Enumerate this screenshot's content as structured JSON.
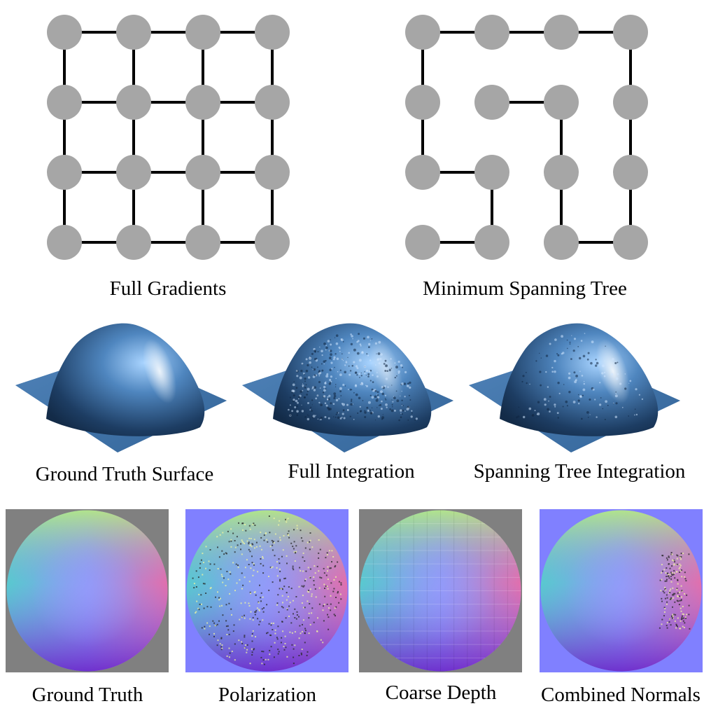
{
  "graphs": {
    "full_gradients": {
      "caption": "Full Gradients",
      "grid": {
        "rows": 4,
        "cols": 4
      },
      "edges": "all-neighbors",
      "node_color": "#a6a6a6",
      "edge_color": "#000000"
    },
    "minimum_spanning_tree": {
      "caption": "Minimum Spanning Tree",
      "grid": {
        "rows": 4,
        "cols": 4
      },
      "edges": [
        [
          [
            0,
            0
          ],
          [
            0,
            1
          ]
        ],
        [
          [
            0,
            1
          ],
          [
            0,
            2
          ]
        ],
        [
          [
            0,
            2
          ],
          [
            0,
            3
          ]
        ],
        [
          [
            0,
            0
          ],
          [
            1,
            0
          ]
        ],
        [
          [
            1,
            0
          ],
          [
            2,
            0
          ]
        ],
        [
          [
            2,
            0
          ],
          [
            2,
            1
          ]
        ],
        [
          [
            2,
            1
          ],
          [
            3,
            1
          ]
        ],
        [
          [
            3,
            0
          ],
          [
            3,
            1
          ]
        ],
        [
          [
            1,
            1
          ],
          [
            1,
            2
          ]
        ],
        [
          [
            1,
            2
          ],
          [
            2,
            2
          ]
        ],
        [
          [
            2,
            2
          ],
          [
            3,
            2
          ]
        ],
        [
          [
            3,
            2
          ],
          [
            3,
            3
          ]
        ],
        [
          [
            0,
            3
          ],
          [
            1,
            3
          ]
        ],
        [
          [
            1,
            3
          ],
          [
            2,
            3
          ]
        ],
        [
          [
            2,
            3
          ],
          [
            3,
            3
          ]
        ]
      ],
      "node_color": "#a6a6a6",
      "edge_color": "#000000"
    }
  },
  "surfaces": {
    "ground_truth": {
      "caption": "Ground Truth Surface",
      "roughness": 0
    },
    "full_integration": {
      "caption": "Full Integration",
      "roughness": 3
    },
    "spanning_tree_integration": {
      "caption": "Spanning Tree Integration",
      "roughness": 1
    },
    "surface_color": "#3d6fa3"
  },
  "normal_maps": {
    "ground_truth": {
      "caption": "Ground Truth",
      "background": "#808080",
      "noise": 0
    },
    "polarization": {
      "caption": "Polarization",
      "background": "#8080ff",
      "noise": 3
    },
    "coarse_depth": {
      "caption": "Coarse Depth",
      "background": "#808080",
      "noise": 0,
      "faceted": true
    },
    "combined_normals": {
      "caption": "Combined Normals",
      "background": "#8080ff",
      "noise": 1
    }
  }
}
